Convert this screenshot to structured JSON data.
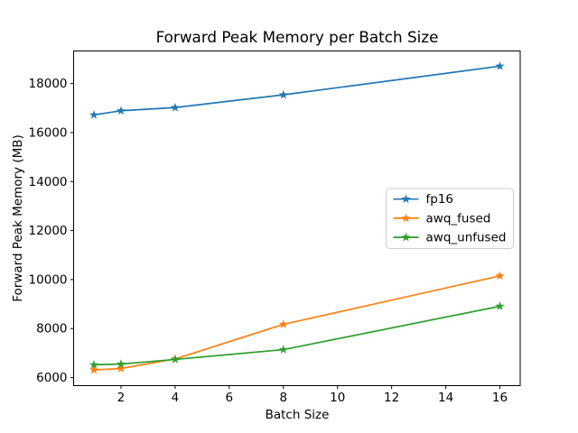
{
  "chart_data": {
    "type": "line",
    "title": "Forward Peak Memory per Batch Size",
    "xlabel": "Batch Size",
    "ylabel": "Forward Peak Memory (MB)",
    "x": [
      1,
      2,
      4,
      8,
      16
    ],
    "series": [
      {
        "name": "fp16",
        "color": "#1f77b4",
        "values": [
          16720,
          16890,
          17020,
          17540,
          18710
        ]
      },
      {
        "name": "awq_fused",
        "color": "#ff7f0e",
        "values": [
          6310,
          6370,
          6760,
          8170,
          10150
        ]
      },
      {
        "name": "awq_unfused",
        "color": "#2ca02c",
        "values": [
          6520,
          6550,
          6740,
          7140,
          8910
        ]
      }
    ],
    "marker": "star",
    "line_width": 1.7,
    "xlim": [
      0.25,
      16.75
    ],
    "ylim": [
      5670,
      19330
    ],
    "xticks": [
      2,
      4,
      6,
      8,
      10,
      12,
      14,
      16
    ],
    "yticks": [
      6000,
      8000,
      10000,
      12000,
      14000,
      16000,
      18000
    ],
    "grid": false,
    "legend": {
      "position": "center-right",
      "entries": [
        "fp16",
        "awq_fused",
        "awq_unfused"
      ],
      "border_color": "#cccccc",
      "background": "#ffffff"
    },
    "axis_color": "#000000",
    "tick_font_px": 13.5
  }
}
